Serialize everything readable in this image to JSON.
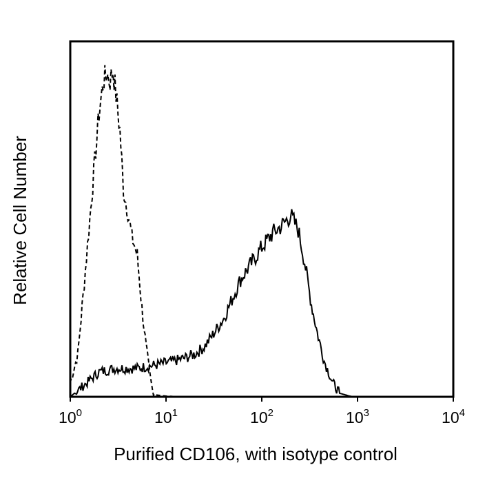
{
  "chart_data": {
    "type": "line",
    "title": "",
    "xlabel": "Purified CD106, with isotype control",
    "ylabel": "Relative Cell Number",
    "xscale": "log",
    "xlim": [
      1,
      10000
    ],
    "ylim": [
      0,
      100
    ],
    "grid": false,
    "x_ticks": [
      {
        "base": "10",
        "exp": "0",
        "value": 1
      },
      {
        "base": "10",
        "exp": "1",
        "value": 10
      },
      {
        "base": "10",
        "exp": "2",
        "value": 100
      },
      {
        "base": "10",
        "exp": "3",
        "value": 1000
      },
      {
        "base": "10",
        "exp": "4",
        "value": 10000
      }
    ],
    "series": [
      {
        "name": "isotype control",
        "style": "dashed",
        "color": "#000000",
        "x": [
          1.0,
          1.2,
          1.4,
          1.6,
          1.8,
          2.0,
          2.2,
          2.4,
          2.6,
          2.8,
          3.0,
          3.3,
          3.6,
          4.0,
          4.4,
          5.0,
          5.6,
          6.2,
          6.8,
          7.2,
          8,
          10,
          14
        ],
        "y": [
          4,
          12,
          32,
          50,
          66,
          80,
          88,
          91,
          89,
          92,
          85,
          75,
          58,
          52,
          45,
          40,
          25,
          14,
          6,
          2,
          0.5,
          0.2,
          0
        ]
      },
      {
        "name": "Purified CD106",
        "style": "solid",
        "color": "#000000",
        "x": [
          1.0,
          1.5,
          2,
          3,
          5,
          8,
          12,
          16,
          20,
          25,
          30,
          40,
          50,
          60,
          80,
          100,
          130,
          160,
          200,
          240,
          280,
          330,
          380,
          450,
          550,
          650,
          800,
          900
        ],
        "y": [
          0,
          4,
          7,
          8,
          8,
          9,
          10,
          11,
          12,
          14,
          17,
          22,
          28,
          33,
          38,
          42,
          46,
          48,
          51,
          47,
          38,
          26,
          18,
          10,
          4,
          1,
          0.3,
          0
        ]
      }
    ]
  }
}
